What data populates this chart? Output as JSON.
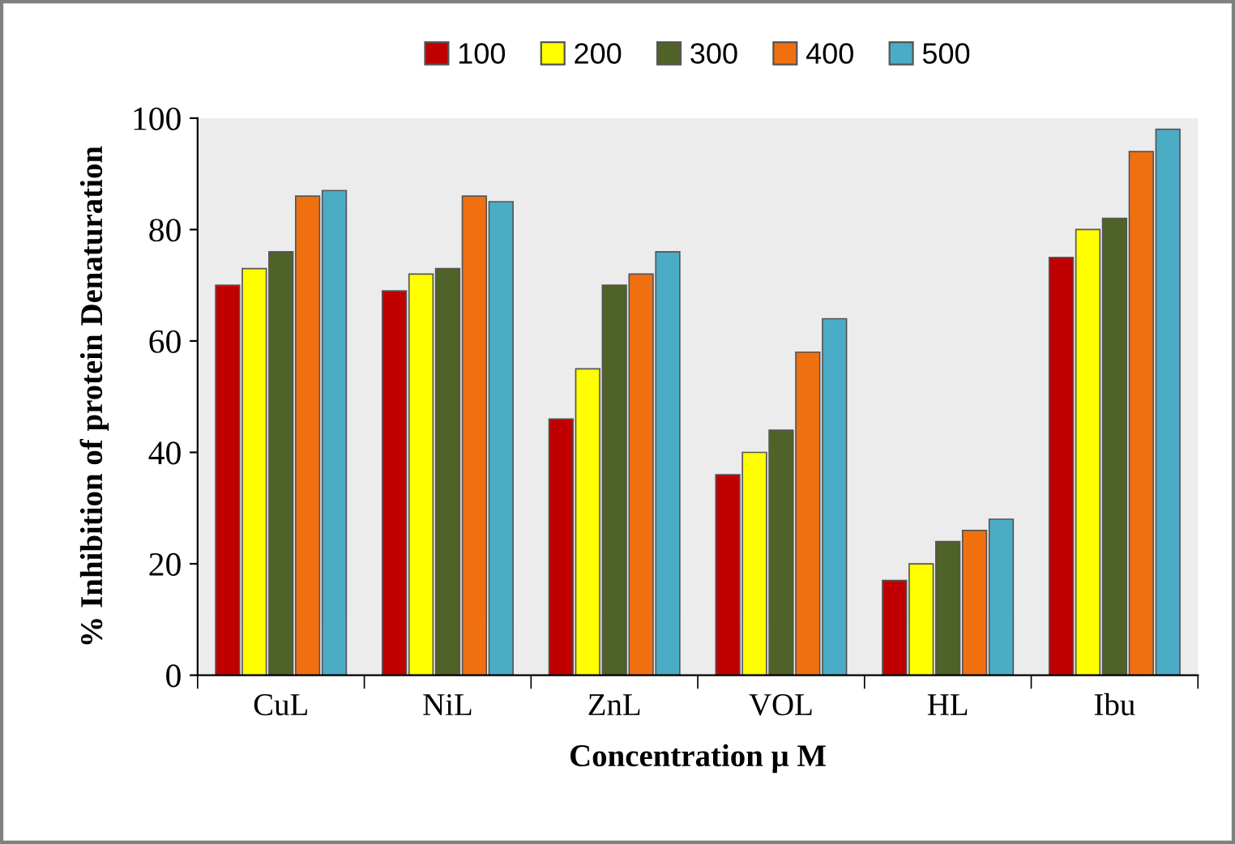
{
  "chart_data": {
    "type": "bar",
    "xlabel": "Concentration μ M",
    "ylabel": "% Inhibition of protein Denaturation",
    "categories": [
      "CuL",
      "NiL",
      "ZnL",
      "VOL",
      "HL",
      "Ibu"
    ],
    "series": [
      {
        "name": "100",
        "color": "#c00000",
        "values": [
          70,
          69,
          46,
          36,
          17,
          75
        ]
      },
      {
        "name": "200",
        "color": "#ffff00",
        "values": [
          73,
          72,
          55,
          40,
          20,
          80
        ]
      },
      {
        "name": "300",
        "color": "#4f6228",
        "values": [
          76,
          73,
          70,
          44,
          24,
          82
        ]
      },
      {
        "name": "400",
        "color": "#f07010",
        "values": [
          86,
          86,
          72,
          58,
          26,
          94
        ]
      },
      {
        "name": "500",
        "color": "#4bacc6",
        "values": [
          87,
          85,
          76,
          64,
          28,
          98
        ]
      }
    ],
    "ylim": [
      0,
      100
    ],
    "yticks": [
      0,
      20,
      40,
      60,
      80,
      100
    ],
    "grid": false,
    "legend": "top"
  }
}
